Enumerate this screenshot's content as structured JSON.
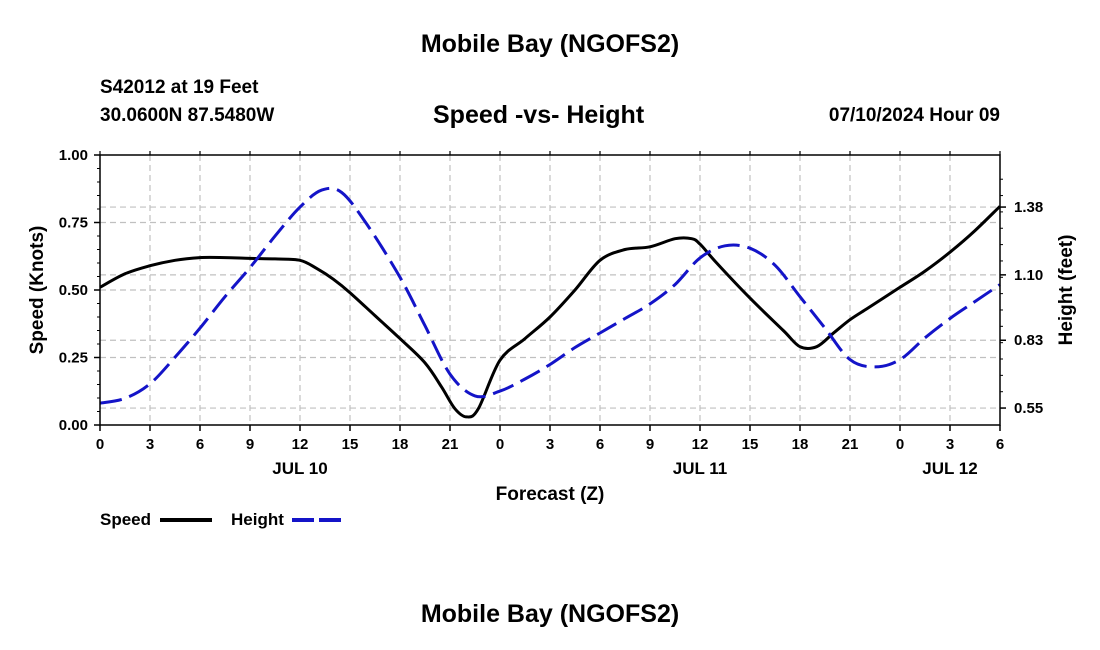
{
  "header": {
    "title": "Mobile Bay (NGOFS2)",
    "station": "S42012 at 19 Feet",
    "coords": "30.0600N  87.5480W",
    "subtitle": "Speed -vs- Height",
    "datetime": "07/10/2024 Hour 09"
  },
  "footer": {
    "title": "Mobile Bay (NGOFS2)"
  },
  "chart_data": {
    "type": "line",
    "xlabel": "Forecast (Z)",
    "ylabel_left": "Speed (Knots)",
    "ylabel_right": "Height (feet)",
    "x_hours_range": [
      0,
      54
    ],
    "xtick_hours": [
      0,
      3,
      6,
      9,
      12,
      15,
      18,
      21,
      24,
      27,
      30,
      33,
      36,
      39,
      42,
      45,
      48,
      51,
      54
    ],
    "xtick_labels": [
      "0",
      "3",
      "6",
      "9",
      "12",
      "15",
      "18",
      "21",
      "0",
      "3",
      "6",
      "9",
      "12",
      "15",
      "18",
      "21",
      "0",
      "3",
      "6"
    ],
    "date_labels": [
      {
        "hour": 12,
        "label": "JUL 10"
      },
      {
        "hour": 36,
        "label": "JUL 11"
      },
      {
        "hour": 51,
        "label": "JUL 12"
      }
    ],
    "ylim_left": [
      0,
      1.0
    ],
    "yticks_left": [
      "0.00",
      "0.25",
      "0.50",
      "0.75",
      "1.00"
    ],
    "ylim_right": [
      0.48,
      1.595
    ],
    "yticks_right": [
      0.55,
      0.83,
      1.1,
      1.38
    ],
    "ytick_labels_right": [
      "0.55",
      "0.83",
      "1.10",
      "1.38"
    ],
    "grid": true,
    "legend_placement": "bottom-left",
    "series": [
      {
        "name": "Speed",
        "axis": "left",
        "color": "#000000",
        "dash": "solid",
        "x": [
          0,
          1.5,
          3,
          4.5,
          6,
          7.5,
          9,
          10.5,
          12,
          13,
          14,
          15,
          16.5,
          18,
          19.5,
          20.5,
          21.3,
          22,
          22.7,
          24,
          25.5,
          27,
          28.5,
          30,
          31.5,
          33,
          34.5,
          35.5,
          36,
          37,
          39,
          41,
          42,
          43,
          44,
          45,
          46,
          47,
          48,
          49.5,
          51,
          52.5,
          54
        ],
        "y": [
          0.51,
          0.56,
          0.59,
          0.61,
          0.62,
          0.62,
          0.617,
          0.615,
          0.61,
          0.58,
          0.54,
          0.49,
          0.405,
          0.32,
          0.23,
          0.14,
          0.06,
          0.03,
          0.06,
          0.24,
          0.32,
          0.4,
          0.5,
          0.61,
          0.65,
          0.66,
          0.69,
          0.69,
          0.67,
          0.6,
          0.47,
          0.35,
          0.29,
          0.29,
          0.34,
          0.39,
          0.43,
          0.47,
          0.51,
          0.57,
          0.64,
          0.72,
          0.81
        ]
      },
      {
        "name": "Height",
        "axis": "right",
        "color": "#1414c8",
        "dash": "dashed",
        "x": [
          0,
          1.5,
          3,
          4.5,
          6,
          7.5,
          9,
          10.5,
          12,
          13.3,
          14.5,
          16,
          18,
          19.5,
          21,
          22.5,
          24,
          25.5,
          27,
          28.5,
          30,
          31.5,
          33,
          34.5,
          36,
          37.5,
          39,
          40.5,
          42,
          43.5,
          45,
          46.5,
          48,
          49.5,
          51,
          52.5,
          54
        ],
        "y": [
          0.57,
          0.59,
          0.65,
          0.76,
          0.88,
          1.01,
          1.13,
          1.26,
          1.38,
          1.45,
          1.44,
          1.31,
          1.09,
          0.89,
          0.69,
          0.6,
          0.62,
          0.67,
          0.73,
          0.8,
          0.86,
          0.92,
          0.98,
          1.06,
          1.17,
          1.22,
          1.21,
          1.14,
          1.01,
          0.88,
          0.75,
          0.72,
          0.75,
          0.84,
          0.92,
          0.99,
          1.06
        ]
      }
    ]
  },
  "legend": {
    "speed_label": "Speed",
    "height_label": "Height"
  }
}
